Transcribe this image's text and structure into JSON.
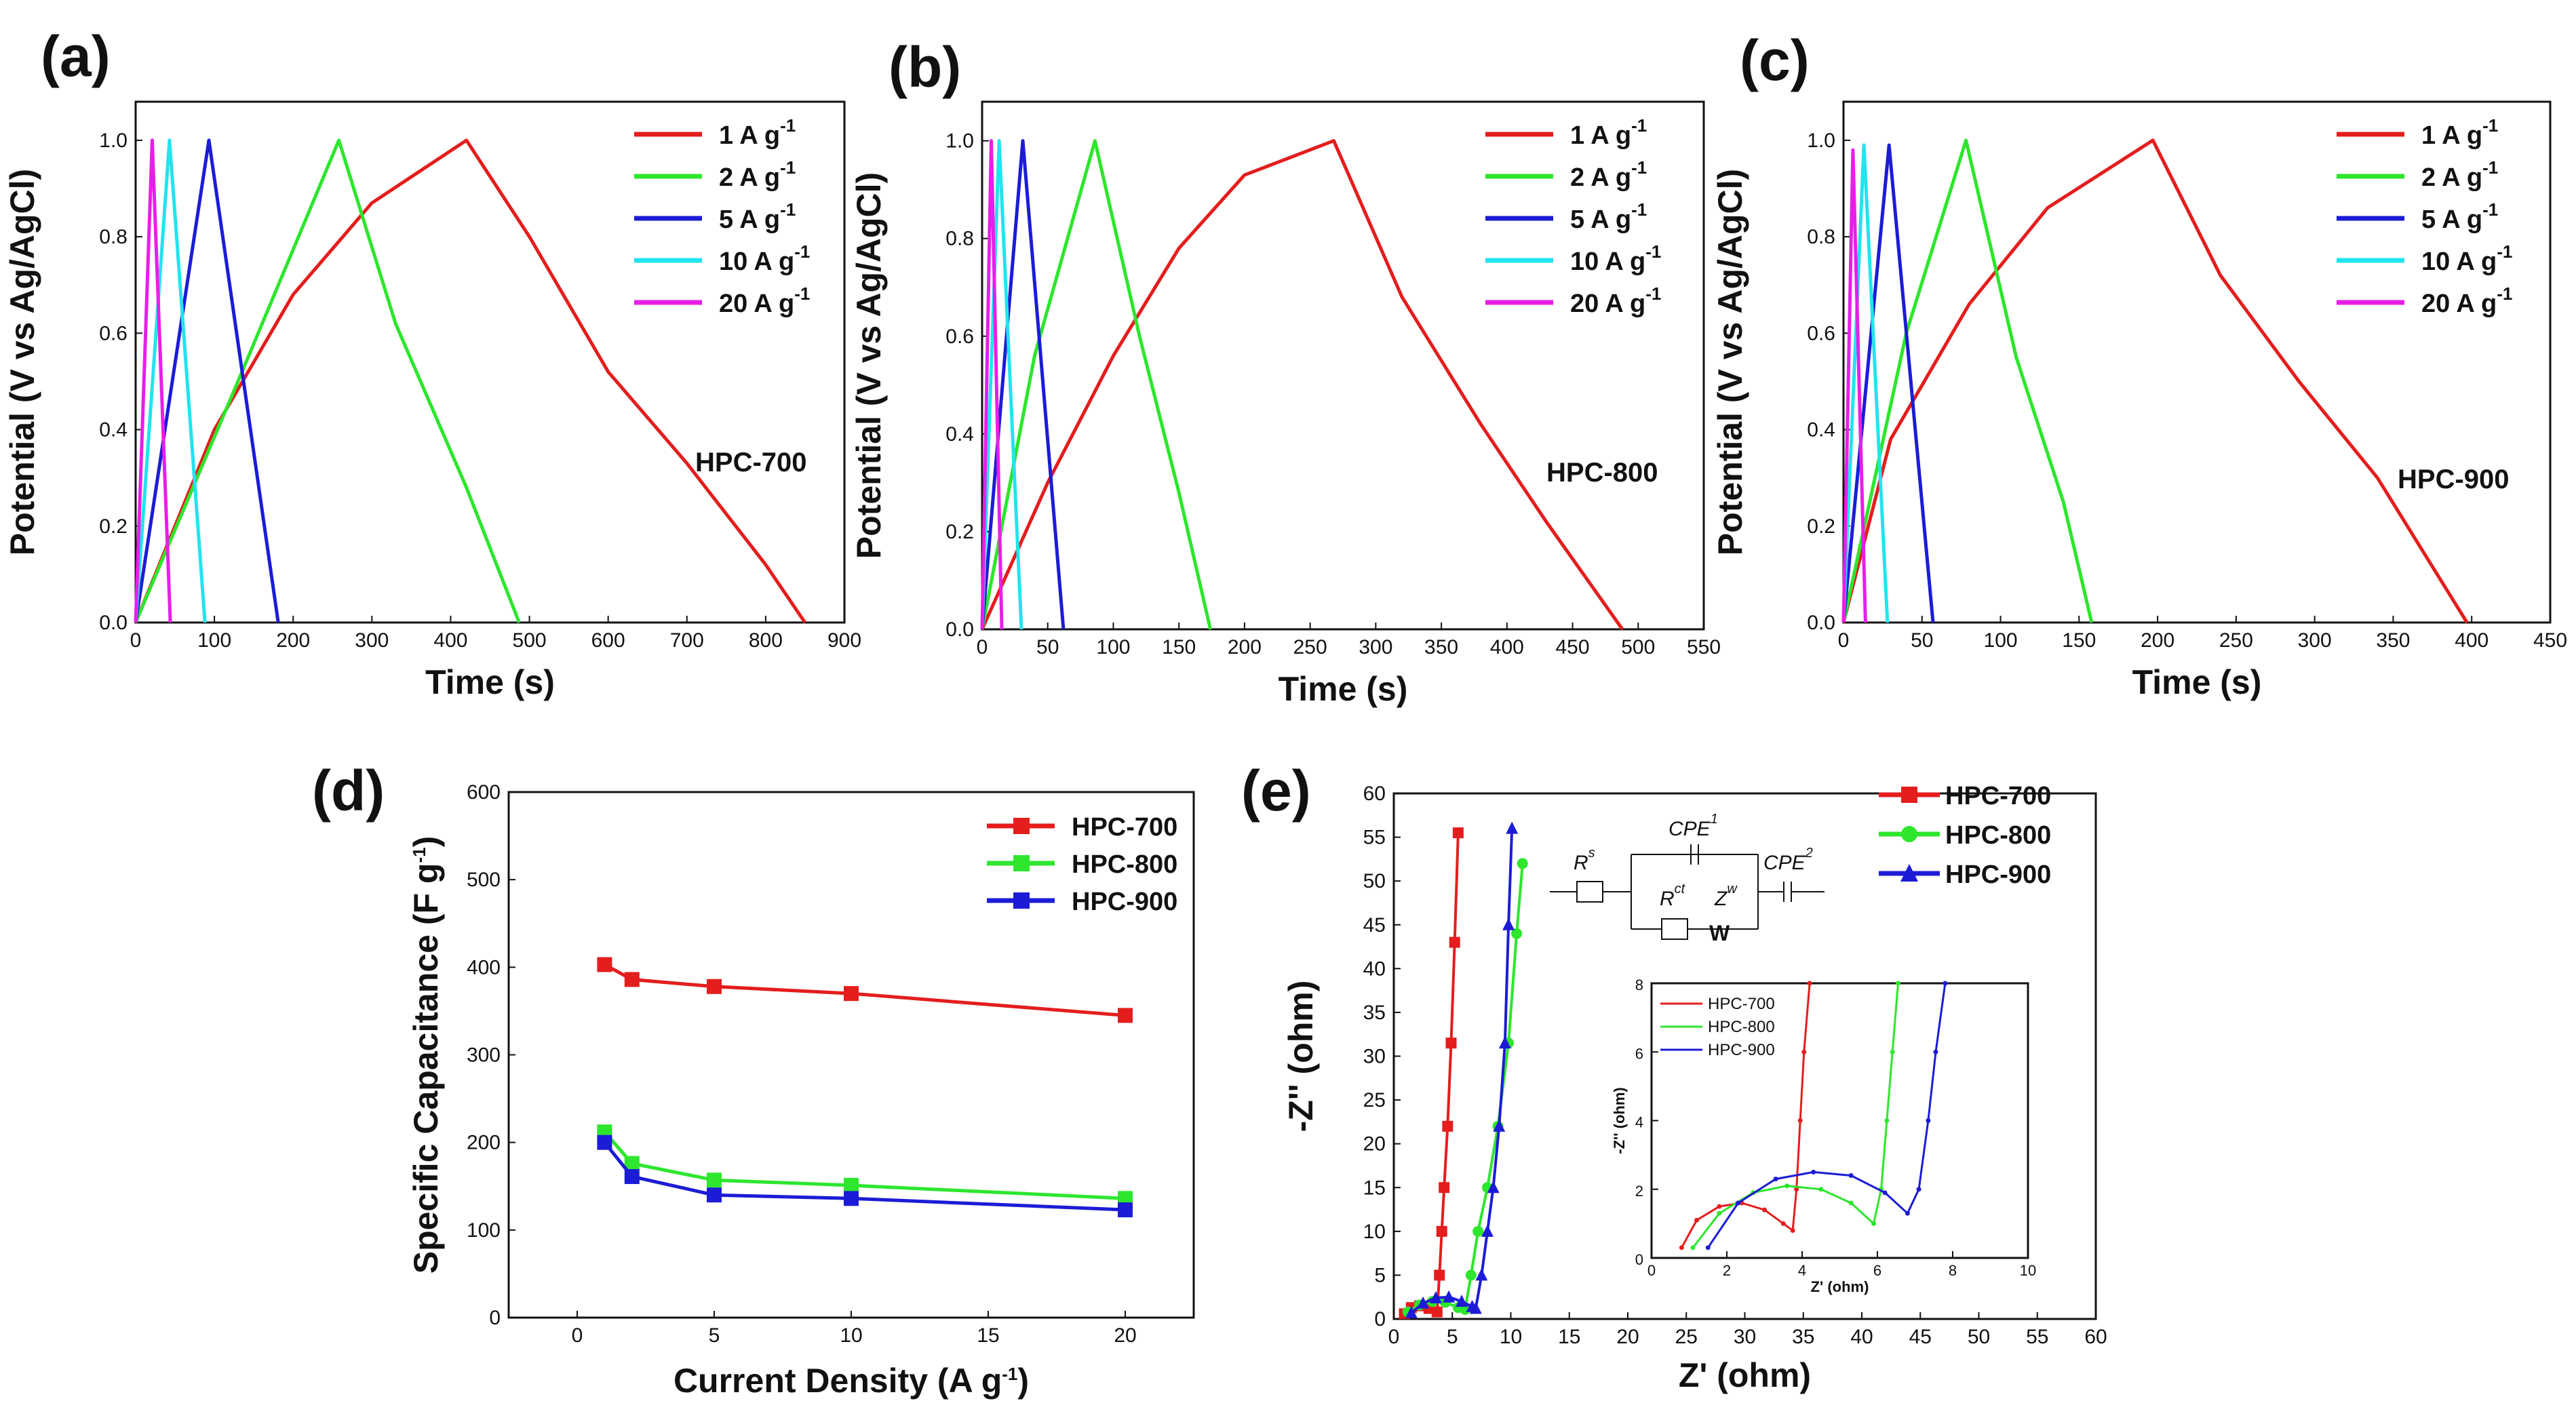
{
  "colors": {
    "red": "#e41d1d",
    "green": "#2de62d",
    "blue": "#1c1cd6",
    "cyan": "#22e4ee",
    "magenta": "#e81ee8"
  },
  "chart_data": [
    {
      "id": "a",
      "type": "line",
      "panel_label": "(a)",
      "xlabel": "Time (s)",
      "ylabel": "Potential (V vs Ag/AgCl)",
      "xlim": [
        0,
        900
      ],
      "ylim": [
        0,
        1.08
      ],
      "xticks": [
        "0",
        "100",
        "200",
        "300",
        "400",
        "500",
        "600",
        "700",
        "800",
        "900"
      ],
      "yticks": [
        "0.0",
        "0.2",
        "0.4",
        "0.6",
        "0.8",
        "1.0"
      ],
      "sample_label": "HPC-700",
      "legend": [
        "1 A g",
        "2 A g",
        "5 A g",
        "10 A g",
        "20 A g"
      ],
      "legend_sup": "-1",
      "series": [
        {
          "name": "1 A g-1",
          "color": "red",
          "x": [
            0,
            100,
            200,
            300,
            420,
            500,
            600,
            700,
            800,
            850
          ],
          "y": [
            0,
            0.4,
            0.68,
            0.87,
            1.0,
            0.8,
            0.52,
            0.33,
            0.12,
            0
          ]
        },
        {
          "name": "2 A g-1",
          "color": "green",
          "x": [
            0,
            130,
            258,
            330,
            420,
            487
          ],
          "y": [
            0,
            0.5,
            1.0,
            0.62,
            0.28,
            0
          ]
        },
        {
          "name": "5 A g-1",
          "color": "blue",
          "x": [
            0,
            93,
            181
          ],
          "y": [
            0,
            1.0,
            0
          ]
        },
        {
          "name": "10 A g-1",
          "color": "cyan",
          "x": [
            0,
            43,
            88
          ],
          "y": [
            0,
            1.0,
            0
          ]
        },
        {
          "name": "20 A g-1",
          "color": "magenta",
          "x": [
            0,
            21,
            44
          ],
          "y": [
            0,
            1.0,
            0
          ]
        }
      ]
    },
    {
      "id": "b",
      "type": "line",
      "panel_label": "(b)",
      "xlabel": "Time (s)",
      "ylabel": "Potential (V vs Ag/AgCl)",
      "xlim": [
        0,
        550
      ],
      "ylim": [
        0,
        1.08
      ],
      "xticks": [
        "0",
        "50",
        "100",
        "150",
        "200",
        "250",
        "300",
        "350",
        "400",
        "450",
        "500",
        "550"
      ],
      "yticks": [
        "0.0",
        "0.2",
        "0.4",
        "0.6",
        "0.8",
        "1.0"
      ],
      "sample_label": "HPC-800",
      "legend": [
        "1 A g",
        "2 A g",
        "5 A g",
        "10 A g",
        "20 A g"
      ],
      "legend_sup": "-1",
      "series": [
        {
          "name": "1 A g-1",
          "color": "red",
          "x": [
            0,
            50,
            100,
            150,
            200,
            268,
            320,
            380,
            430,
            488
          ],
          "y": [
            0,
            0.3,
            0.56,
            0.78,
            0.93,
            1.0,
            0.68,
            0.42,
            0.22,
            0
          ]
        },
        {
          "name": "2 A g-1",
          "color": "green",
          "x": [
            0,
            40,
            86,
            120,
            150,
            174
          ],
          "y": [
            0,
            0.56,
            1.0,
            0.6,
            0.28,
            0
          ]
        },
        {
          "name": "5 A g-1",
          "color": "blue",
          "x": [
            0,
            31,
            62
          ],
          "y": [
            0,
            1.0,
            0
          ]
        },
        {
          "name": "10 A g-1",
          "color": "cyan",
          "x": [
            0,
            13,
            30
          ],
          "y": [
            0,
            1.0,
            0
          ]
        },
        {
          "name": "20 A g-1",
          "color": "magenta",
          "x": [
            0,
            7,
            15
          ],
          "y": [
            0,
            1.0,
            0
          ]
        }
      ]
    },
    {
      "id": "c",
      "type": "line",
      "panel_label": "(c)",
      "xlabel": "Time (s)",
      "ylabel": "Potential (V vs Ag/AgCl)",
      "xlim": [
        0,
        450
      ],
      "ylim": [
        0,
        1.08
      ],
      "xticks": [
        "0",
        "50",
        "100",
        "150",
        "200",
        "250",
        "300",
        "350",
        "400",
        "450"
      ],
      "yticks": [
        "0.0",
        "0.2",
        "0.4",
        "0.6",
        "0.8",
        "1.0"
      ],
      "sample_label": "HPC-900",
      "legend": [
        "1 A g",
        "2 A g",
        "5 A g",
        "10 A g",
        "20 A g"
      ],
      "legend_sup": "-1",
      "series": [
        {
          "name": "1 A g-1",
          "color": "red",
          "x": [
            0,
            30,
            80,
            130,
            197,
            240,
            290,
            340,
            397
          ],
          "y": [
            0,
            0.38,
            0.66,
            0.86,
            1.0,
            0.72,
            0.5,
            0.3,
            0
          ]
        },
        {
          "name": "2 A g-1",
          "color": "green",
          "x": [
            0,
            40,
            78,
            110,
            140,
            158
          ],
          "y": [
            0,
            0.6,
            1.0,
            0.55,
            0.25,
            0
          ]
        },
        {
          "name": "5 A g-1",
          "color": "blue",
          "x": [
            0,
            29,
            57
          ],
          "y": [
            0,
            0.99,
            0
          ]
        },
        {
          "name": "10 A g-1",
          "color": "cyan",
          "x": [
            0,
            13,
            28
          ],
          "y": [
            0,
            0.99,
            0
          ]
        },
        {
          "name": "20 A g-1",
          "color": "magenta",
          "x": [
            0,
            6,
            14
          ],
          "y": [
            0,
            0.98,
            0
          ]
        }
      ]
    },
    {
      "id": "d",
      "type": "line",
      "panel_label": "(d)",
      "xlabel": "Current Density (A g",
      "xlabel_sup": "-1",
      "xlabel_end": ")",
      "ylabel": "Specific Capacitance (F g",
      "ylabel_sup": "-1",
      "ylabel_end": ")",
      "xlim": [
        -2.5,
        22.5
      ],
      "ylim": [
        0,
        600
      ],
      "xticks": [
        "0",
        "5",
        "10",
        "15",
        "20"
      ],
      "yticks": [
        "0",
        "100",
        "200",
        "300",
        "400",
        "500",
        "600"
      ],
      "legend": [
        "HPC-700",
        "HPC-800",
        "HPC-900"
      ],
      "series": [
        {
          "name": "HPC-700",
          "color": "red",
          "x": [
            1,
            2,
            5,
            10,
            20
          ],
          "y": [
            403,
            386,
            378,
            370,
            345
          ]
        },
        {
          "name": "HPC-800",
          "color": "green",
          "x": [
            1,
            2,
            5,
            10,
            20
          ],
          "y": [
            212,
            176,
            157,
            151,
            136
          ]
        },
        {
          "name": "HPC-900",
          "color": "blue",
          "x": [
            1,
            2,
            5,
            10,
            20
          ],
          "y": [
            200,
            161,
            140,
            136,
            123
          ]
        }
      ]
    },
    {
      "id": "e",
      "type": "scatter",
      "panel_label": "(e)",
      "xlabel": "Z' (ohm)",
      "ylabel": "-Z'' (ohm)",
      "xlim": [
        0,
        60
      ],
      "ylim": [
        0,
        60
      ],
      "xticks": [
        "0",
        "5",
        "10",
        "15",
        "20",
        "25",
        "30",
        "35",
        "40",
        "45",
        "50",
        "55",
        "60"
      ],
      "yticks": [
        "0",
        "5",
        "10",
        "15",
        "20",
        "25",
        "30",
        "35",
        "40",
        "45",
        "50",
        "55",
        "60"
      ],
      "legend": [
        "HPC-700",
        "HPC-800",
        "HPC-900"
      ],
      "series": [
        {
          "name": "HPC-700",
          "color": "red",
          "marker": "square",
          "x": [
            0.9,
            1.5,
            2.2,
            3.0,
            3.7,
            3.9,
            4.1,
            4.3,
            4.6,
            4.9,
            5.2,
            5.5
          ],
          "y": [
            0.6,
            1.3,
            1.5,
            1.2,
            0.8,
            5,
            10,
            15,
            22,
            31.5,
            43,
            55.5
          ]
        },
        {
          "name": "HPC-800",
          "color": "green",
          "marker": "circle",
          "x": [
            1.2,
            2.2,
            3.3,
            4.4,
            5.5,
            6.1,
            6.6,
            7.2,
            8.0,
            8.9,
            9.8,
            10.5,
            11.0
          ],
          "y": [
            0.8,
            1.6,
            2.0,
            1.9,
            1.3,
            1.1,
            5,
            10,
            15,
            22,
            31.5,
            44,
            52
          ]
        },
        {
          "name": "HPC-900",
          "color": "blue",
          "marker": "triangle",
          "x": [
            1.5,
            2.5,
            3.6,
            4.7,
            5.8,
            6.7,
            7.0,
            7.5,
            8.0,
            8.5,
            9.0,
            9.5,
            9.8,
            10.1
          ],
          "y": [
            0.7,
            1.8,
            2.4,
            2.5,
            2.0,
            1.4,
            1.2,
            5,
            10,
            15,
            22,
            31.5,
            45,
            56
          ]
        }
      ],
      "circuit": {
        "labels": [
          "CPE",
          "CPE",
          "R",
          "R",
          "Z",
          "W"
        ],
        "subs": [
          "1",
          "2",
          "s",
          "ct",
          "w"
        ]
      },
      "inset": {
        "xlabel": "Z' (ohm)",
        "ylabel": "-Z'' (ohm)",
        "xlim": [
          0,
          10
        ],
        "ylim": [
          0,
          8
        ],
        "xticks": [
          "0",
          "2",
          "4",
          "6",
          "8",
          "10"
        ],
        "yticks": [
          "0",
          "2",
          "4",
          "6",
          "8"
        ],
        "legend": [
          "HPC-700",
          "HPC-800",
          "HPC-900"
        ],
        "series": [
          {
            "name": "HPC-700",
            "color": "red",
            "x": [
              0.8,
              1.2,
              1.8,
              2.4,
              3.0,
              3.5,
              3.75,
              3.85,
              3.95,
              4.05,
              4.2
            ],
            "y": [
              0.3,
              1.1,
              1.5,
              1.6,
              1.4,
              1.0,
              0.8,
              2.0,
              4.0,
              6.0,
              8.0
            ]
          },
          {
            "name": "HPC-800",
            "color": "green",
            "x": [
              1.1,
              1.8,
              2.7,
              3.6,
              4.5,
              5.3,
              5.9,
              6.1,
              6.25,
              6.4,
              6.55
            ],
            "y": [
              0.3,
              1.3,
              1.9,
              2.1,
              2.0,
              1.6,
              1.0,
              2.0,
              4.0,
              6.0,
              8.0
            ]
          },
          {
            "name": "HPC-900",
            "color": "blue",
            "x": [
              1.5,
              2.3,
              3.3,
              4.3,
              5.3,
              6.2,
              6.8,
              7.1,
              7.35,
              7.55,
              7.8
            ],
            "y": [
              0.3,
              1.6,
              2.3,
              2.5,
              2.4,
              1.9,
              1.3,
              2.0,
              4.0,
              6.0,
              8.0
            ]
          }
        ]
      }
    }
  ]
}
